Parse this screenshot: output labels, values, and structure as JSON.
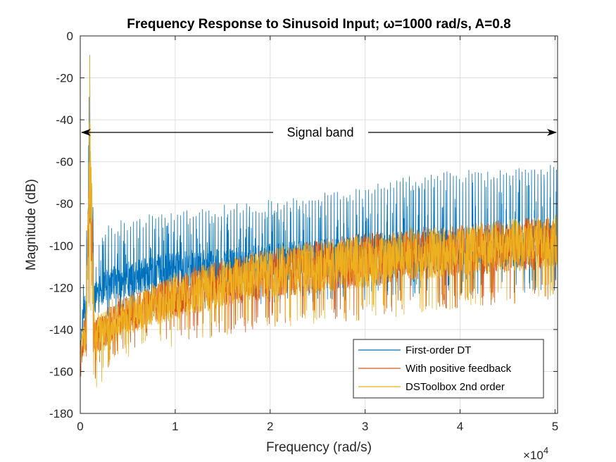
{
  "chart_data": {
    "type": "line",
    "title": "Frequency Response to Sinusoid Input; ω=1000 rad/s, A=0.8",
    "xlabel": "Frequency (rad/s)",
    "ylabel": "Magnitude (dB)",
    "x_exponent_label": "×10",
    "x_exponent_power": "4",
    "xlim": [
      0,
      50265
    ],
    "ylim": [
      -180,
      0
    ],
    "x_tick_values": [
      0,
      10000,
      20000,
      30000,
      40000,
      50000
    ],
    "x_tick_labels": [
      "0",
      "1",
      "2",
      "3",
      "4",
      "5"
    ],
    "y_tick_values": [
      0,
      -20,
      -40,
      -60,
      -80,
      -100,
      -120,
      -140,
      -160,
      -180
    ],
    "y_tick_labels": [
      "0",
      "-20",
      "-40",
      "-60",
      "-80",
      "-100",
      "-120",
      "-140",
      "-160",
      "-180"
    ],
    "grid": true,
    "legend_position": "bottom-right",
    "annotation": {
      "text": "Signal band",
      "y": -46,
      "x_start": 0,
      "x_end": 50265
    },
    "series": [
      {
        "name": "First-order DT",
        "color": "#0072BD",
        "description_points_x": [
          0,
          300,
          600,
          1000,
          1500,
          2000,
          3000,
          5000,
          8000,
          12000,
          16000,
          20000,
          25000,
          30000,
          35000,
          40000,
          45000,
          50265
        ],
        "upper_envelope_y": [
          -145,
          -125,
          -118,
          -8,
          -118,
          -100,
          -95,
          -93,
          -90,
          -88,
          -86,
          -84,
          -80,
          -78,
          -72,
          -70,
          -68,
          -66
        ],
        "median_y": [
          -150,
          -132,
          -128,
          -60,
          -125,
          -122,
          -118,
          -116,
          -113,
          -111,
          -110,
          -108,
          -106,
          -104,
          -103,
          -102,
          -101,
          -100
        ],
        "lower_envelope_y": [
          -160,
          -150,
          -145,
          -120,
          -140,
          -138,
          -136,
          -135,
          -133,
          -132,
          -130,
          -128,
          -127,
          -126,
          -125,
          -124,
          -123,
          -122
        ]
      },
      {
        "name": "With positive feedback",
        "color": "#D95319",
        "description_points_x": [
          0,
          300,
          600,
          1000,
          1500,
          2000,
          3000,
          5000,
          8000,
          12000,
          16000,
          20000,
          25000,
          30000,
          35000,
          40000,
          45000,
          50265
        ],
        "upper_envelope_y": [
          -148,
          -135,
          -130,
          -10,
          -135,
          -130,
          -125,
          -120,
          -115,
          -110,
          -106,
          -103,
          -100,
          -97,
          -94,
          -92,
          -90,
          -88
        ],
        "median_y": [
          -155,
          -145,
          -142,
          -60,
          -145,
          -142,
          -138,
          -133,
          -127,
          -121,
          -117,
          -113,
          -110,
          -107,
          -104,
          -102,
          -100,
          -98
        ],
        "lower_envelope_y": [
          -165,
          -163,
          -160,
          -125,
          -165,
          -162,
          -158,
          -152,
          -148,
          -145,
          -142,
          -140,
          -138,
          -136,
          -132,
          -130,
          -128,
          -126
        ]
      },
      {
        "name": "DSToolbox 2nd order",
        "color": "#EDB120",
        "description_points_x": [
          0,
          300,
          600,
          1000,
          1500,
          2000,
          3000,
          5000,
          8000,
          12000,
          16000,
          20000,
          25000,
          30000,
          35000,
          40000,
          45000,
          50265
        ],
        "upper_envelope_y": [
          -148,
          -135,
          -130,
          -8,
          -135,
          -130,
          -125,
          -120,
          -115,
          -110,
          -106,
          -103,
          -100,
          -97,
          -94,
          -92,
          -90,
          -88
        ],
        "median_y": [
          -156,
          -146,
          -143,
          -60,
          -146,
          -143,
          -139,
          -134,
          -128,
          -122,
          -117,
          -113,
          -110,
          -107,
          -104,
          -102,
          -100,
          -98
        ],
        "lower_envelope_y": [
          -168,
          -166,
          -162,
          -128,
          -170,
          -167,
          -160,
          -154,
          -150,
          -146,
          -143,
          -140,
          -138,
          -136,
          -133,
          -130,
          -128,
          -126
        ]
      }
    ]
  }
}
